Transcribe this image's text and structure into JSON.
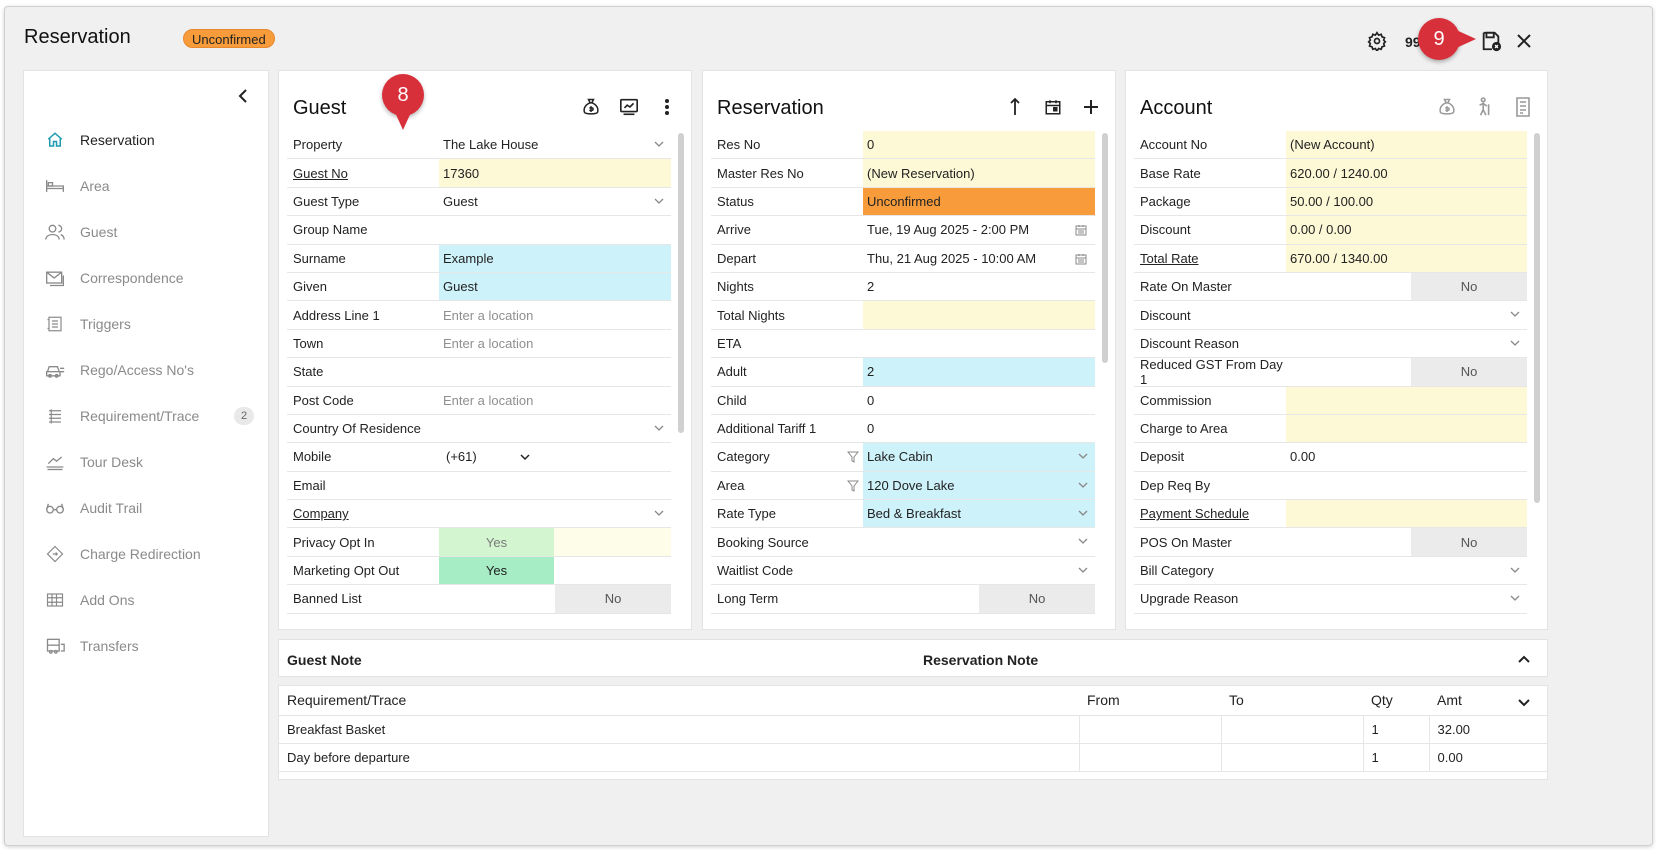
{
  "window": {
    "title": "Reservation",
    "status_badge": "Unconfirmed",
    "counter_text": "99",
    "callout_8": "8",
    "callout_9": "9"
  },
  "colors": {
    "accent_orange": "#f89c3b",
    "callout_red": "#d8303a",
    "field_yellow": "#fdf8d5",
    "field_blue": "#cef2fa",
    "yes_green": "#a6ecc4"
  },
  "sidebar": {
    "items": [
      {
        "label": "Reservation",
        "icon": "home-icon",
        "active": true
      },
      {
        "label": "Area",
        "icon": "bed-icon"
      },
      {
        "label": "Guest",
        "icon": "users-icon"
      },
      {
        "label": "Correspondence",
        "icon": "envelope-icon"
      },
      {
        "label": "Triggers",
        "icon": "trigger-list-icon"
      },
      {
        "label": "Rego/Access No's",
        "icon": "car-icon"
      },
      {
        "label": "Requirement/Trace",
        "icon": "list-icon",
        "badge": "2"
      },
      {
        "label": "Tour Desk",
        "icon": "tour-icon"
      },
      {
        "label": "Audit Trail",
        "icon": "glasses-icon"
      },
      {
        "label": "Charge Redirection",
        "icon": "redirect-icon"
      },
      {
        "label": "Add Ons",
        "icon": "grid-icon"
      },
      {
        "label": "Transfers",
        "icon": "bus-icon"
      }
    ]
  },
  "guest": {
    "title": "Guest",
    "fields": {
      "property": {
        "label": "Property",
        "value": "The Lake House"
      },
      "guest_no": {
        "label": "Guest No",
        "value": "17360"
      },
      "guest_type": {
        "label": "Guest Type",
        "value": "Guest"
      },
      "group_name": {
        "label": "Group Name",
        "value": ""
      },
      "surname": {
        "label": "Surname",
        "value": "Example"
      },
      "given": {
        "label": "Given",
        "value": "Guest"
      },
      "address_line_1": {
        "label": "Address Line 1",
        "placeholder": "Enter a location"
      },
      "town": {
        "label": "Town",
        "placeholder": "Enter a location"
      },
      "state": {
        "label": "State",
        "value": ""
      },
      "post_code": {
        "label": "Post Code",
        "placeholder": "Enter a location"
      },
      "country": {
        "label": "Country Of Residence",
        "value": ""
      },
      "mobile": {
        "label": "Mobile",
        "value": "(+61)"
      },
      "email": {
        "label": "Email",
        "value": ""
      },
      "company": {
        "label": "Company",
        "value": ""
      },
      "privacy_opt_in": {
        "label": "Privacy Opt In",
        "value": "Yes"
      },
      "marketing_opt_out": {
        "label": "Marketing Opt Out",
        "value": "Yes"
      },
      "banned_list": {
        "label": "Banned List",
        "value": "No"
      }
    }
  },
  "reservation": {
    "title": "Reservation",
    "fields": {
      "res_no": {
        "label": "Res No",
        "value": "0"
      },
      "master_res_no": {
        "label": "Master Res No",
        "value": "(New Reservation)"
      },
      "status": {
        "label": "Status",
        "value": "Unconfirmed"
      },
      "arrive": {
        "label": "Arrive",
        "value": "Tue, 19 Aug 2025 - 2:00 PM"
      },
      "depart": {
        "label": "Depart",
        "value": "Thu, 21 Aug 2025 - 10:00 AM"
      },
      "nights": {
        "label": "Nights",
        "value": "2"
      },
      "total_nights": {
        "label": "Total Nights",
        "value": ""
      },
      "eta": {
        "label": "ETA",
        "value": ""
      },
      "adult": {
        "label": "Adult",
        "value": "2"
      },
      "child": {
        "label": "Child",
        "value": "0"
      },
      "additional_tariff_1": {
        "label": "Additional Tariff 1",
        "value": "0"
      },
      "category": {
        "label": "Category",
        "value": "Lake Cabin"
      },
      "area": {
        "label": "Area",
        "value": "120 Dove Lake"
      },
      "rate_type": {
        "label": "Rate Type",
        "value": "Bed & Breakfast"
      },
      "booking_source": {
        "label": "Booking Source",
        "value": ""
      },
      "waitlist_code": {
        "label": "Waitlist Code",
        "value": ""
      },
      "long_term": {
        "label": "Long Term",
        "value": "No"
      }
    }
  },
  "account": {
    "title": "Account",
    "fields": {
      "account_no": {
        "label": "Account No",
        "value": "(New Account)"
      },
      "base_rate": {
        "label": "Base Rate",
        "value": "620.00 / 1240.00"
      },
      "package": {
        "label": "Package",
        "value": "50.00 / 100.00"
      },
      "discount_amt": {
        "label": "Discount",
        "value": "0.00 / 0.00"
      },
      "total_rate": {
        "label": "Total Rate",
        "value": "670.00 / 1340.00"
      },
      "rate_on_master": {
        "label": "Rate On Master",
        "value": "No"
      },
      "discount": {
        "label": "Discount",
        "value": ""
      },
      "discount_reason": {
        "label": "Discount Reason",
        "value": ""
      },
      "reduced_gst": {
        "label": "Reduced GST From Day 1",
        "value": "No"
      },
      "commission": {
        "label": "Commission",
        "value": ""
      },
      "charge_to_area": {
        "label": "Charge to Area",
        "value": ""
      },
      "deposit": {
        "label": "Deposit",
        "value": "0.00"
      },
      "dep_req_by": {
        "label": "Dep Req By",
        "value": ""
      },
      "payment_schedule": {
        "label": "Payment Schedule",
        "value": ""
      },
      "pos_on_master": {
        "label": "POS On Master",
        "value": "No"
      },
      "bill_category": {
        "label": "Bill Category",
        "value": ""
      },
      "upgrade_reason": {
        "label": "Upgrade Reason",
        "value": ""
      }
    }
  },
  "notes": {
    "guest_note": "Guest Note",
    "reservation_note": "Reservation Note"
  },
  "requirements": {
    "headers": [
      "Requirement/Trace",
      "From",
      "To",
      "Qty",
      "Amt"
    ],
    "rows": [
      [
        "Breakfast Basket",
        "",
        "",
        "1",
        "32.00"
      ],
      [
        "Day before departure",
        "",
        "",
        "1",
        "0.00"
      ]
    ]
  }
}
